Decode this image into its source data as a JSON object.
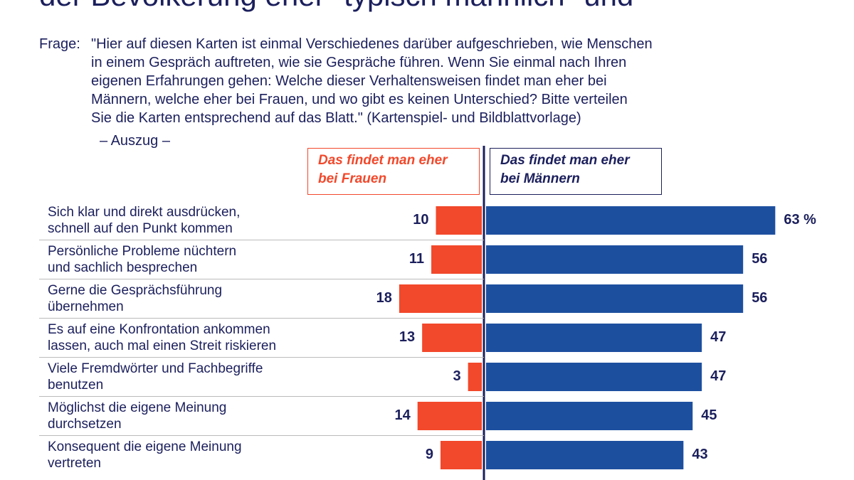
{
  "chart_data": {
    "type": "diverging-bar",
    "title": "der Bevölkerung eher \"typisch männlich\" und",
    "question_label": "Frage:",
    "question_lines": [
      "\"Hier auf diesen Karten ist einmal Verschiedenes darüber aufgeschrieben, wie Menschen",
      "in einem Gespräch auftreten, wie sie Gespräche führen. Wenn Sie einmal nach Ihren",
      "eigenen Erfahrungen gehen: Welche dieser Verhaltensweisen findet man eher bei",
      "Männern, welche eher bei Frauen, und wo gibt es keinen Unterschied? Bitte verteilen",
      "Sie die Karten entsprechend auf das Blatt.\" (Kartenspiel- und Bildblattvorlage)"
    ],
    "note": "– Auszug –",
    "categories": [
      "Sich klar und direkt ausdrücken,\nschnell auf den Punkt kommen",
      "Persönliche Probleme nüchtern\nund sachlich besprechen",
      "Gerne die Gesprächsführung\nübernehmen",
      "Es auf eine Konfrontation ankommen\nlassen, auch mal einen Streit riskieren",
      "Viele Fremdwörter und Fachbegriffe\nbenutzen",
      "Möglichst die eigene Meinung\ndurchsetzen",
      "Konsequent die eigene Meinung\nvertreten"
    ],
    "series": [
      {
        "name": "Das findet man eher\nbei Frauen",
        "color": "#f2482b",
        "side": "left",
        "values": [
          10,
          11,
          18,
          13,
          3,
          14,
          9
        ]
      },
      {
        "name": "Das findet man eher\nbei Männern",
        "color": "#1d4f9f",
        "side": "right",
        "values": [
          63,
          56,
          56,
          47,
          47,
          45,
          43
        ],
        "value_labels": [
          "63 %",
          "56",
          "56",
          "47",
          "47",
          "45",
          "43"
        ]
      }
    ]
  }
}
